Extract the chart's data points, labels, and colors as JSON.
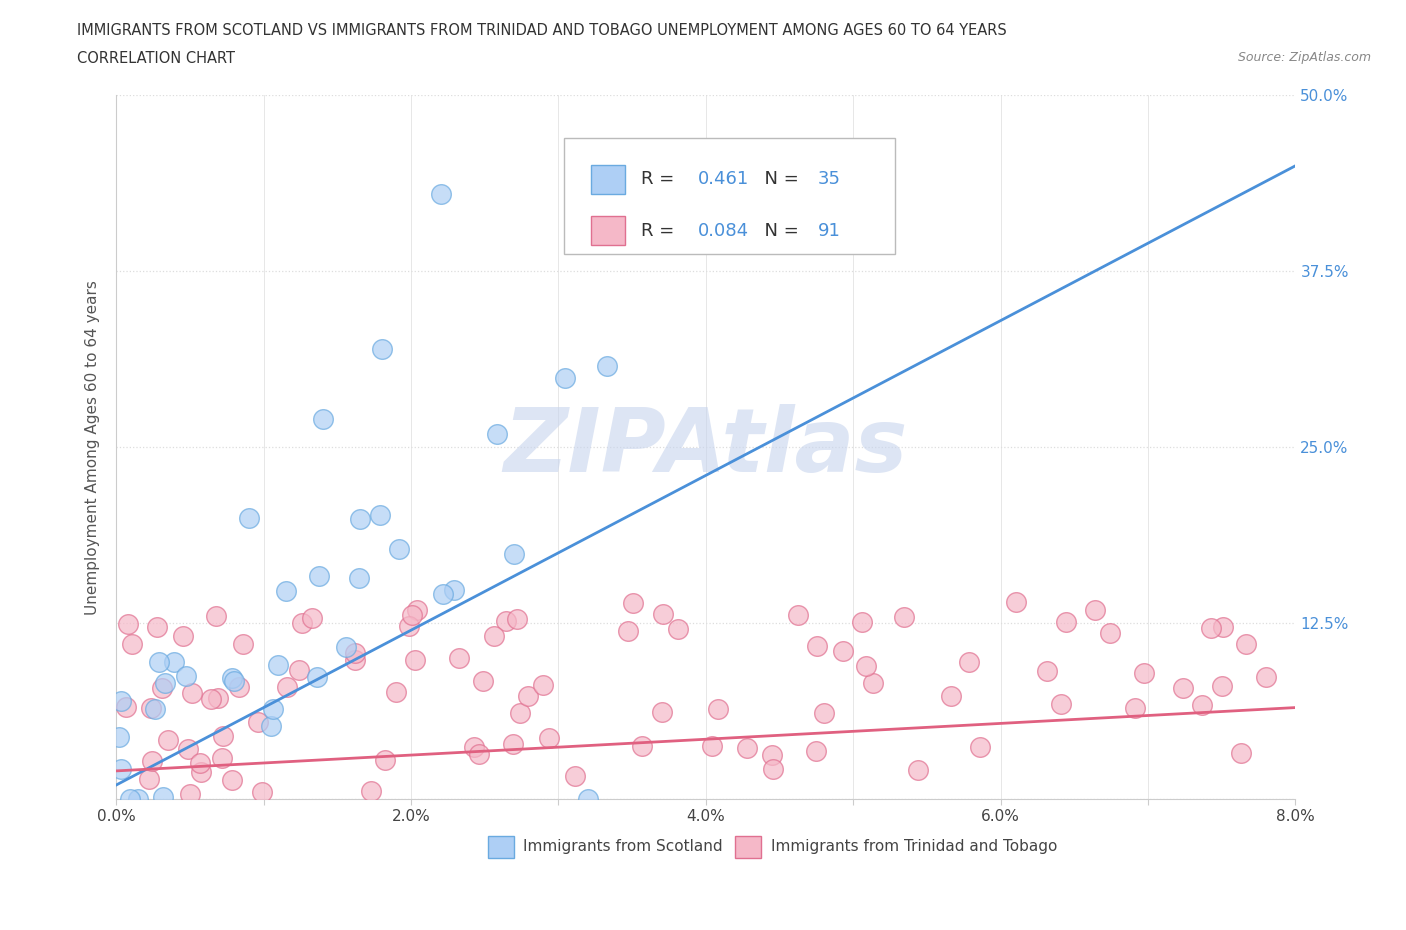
{
  "title_line1": "IMMIGRANTS FROM SCOTLAND VS IMMIGRANTS FROM TRINIDAD AND TOBAGO UNEMPLOYMENT AMONG AGES 60 TO 64 YEARS",
  "title_line2": "CORRELATION CHART",
  "source_text": "Source: ZipAtlas.com",
  "ylabel": "Unemployment Among Ages 60 to 64 years",
  "xlim": [
    0.0,
    0.08
  ],
  "ylim": [
    0.0,
    0.5
  ],
  "xtick_vals": [
    0.0,
    0.01,
    0.02,
    0.03,
    0.04,
    0.05,
    0.06,
    0.07,
    0.08
  ],
  "xtick_labels": [
    "0.0%",
    "",
    "2.0%",
    "",
    "4.0%",
    "",
    "6.0%",
    "",
    "8.0%"
  ],
  "ytick_vals": [
    0.0,
    0.125,
    0.25,
    0.375,
    0.5
  ],
  "ytick_labels": [
    "",
    "12.5%",
    "25.0%",
    "37.5%",
    "50.0%"
  ],
  "scotland_color": "#aecff5",
  "scotland_edge_color": "#6aaae0",
  "trinidad_color": "#f5b8c8",
  "trinidad_edge_color": "#e07090",
  "scotland_R": 0.461,
  "scotland_N": 35,
  "trinidad_R": 0.084,
  "trinidad_N": 91,
  "watermark": "ZIPAtlas",
  "watermark_color_r": 0.78,
  "watermark_color_g": 0.83,
  "watermark_color_b": 0.93,
  "legend_scotland": "Immigrants from Scotland",
  "legend_trinidad": "Immigrants from Trinidad and Tobago",
  "ytick_color": "#4a90d9",
  "trend_scotland_color": "#4a90d9",
  "trend_trinidad_color": "#e06080",
  "grid_color": "#dddddd",
  "spine_color": "#cccccc",
  "title_color": "#333333",
  "source_color": "#888888",
  "ylabel_color": "#555555"
}
